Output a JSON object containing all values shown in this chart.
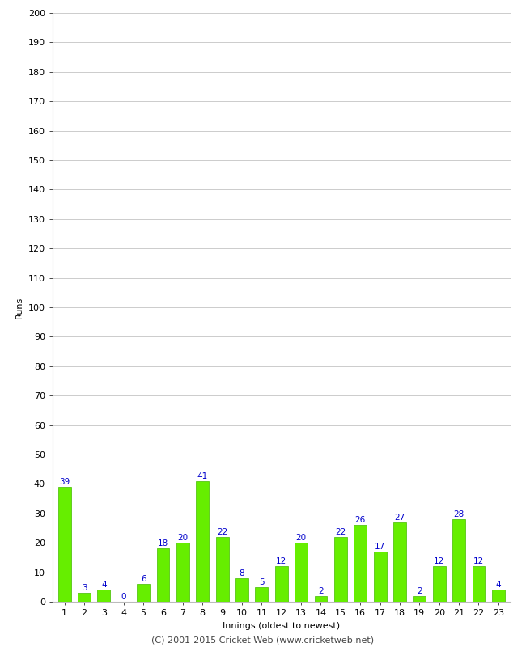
{
  "xlabel": "Innings (oldest to newest)",
  "ylabel": "Runs",
  "innings": [
    1,
    2,
    3,
    4,
    5,
    6,
    7,
    8,
    9,
    10,
    11,
    12,
    13,
    14,
    15,
    16,
    17,
    18,
    19,
    20,
    21,
    22,
    23
  ],
  "values": [
    39,
    3,
    4,
    0,
    6,
    18,
    20,
    41,
    22,
    8,
    5,
    12,
    20,
    2,
    22,
    26,
    17,
    27,
    2,
    12,
    28,
    12,
    4
  ],
  "bar_color": "#66ee00",
  "bar_edge_color": "#44bb00",
  "label_color": "#0000cc",
  "ylim": [
    0,
    200
  ],
  "yticks": [
    0,
    10,
    20,
    30,
    40,
    50,
    60,
    70,
    80,
    90,
    100,
    110,
    120,
    130,
    140,
    150,
    160,
    170,
    180,
    190,
    200
  ],
  "background_color": "#ffffff",
  "grid_color": "#cccccc",
  "footer": "(C) 2001-2015 Cricket Web (www.cricketweb.net)",
  "label_fontsize": 7.5,
  "tick_fontsize": 8,
  "xlabel_fontsize": 8,
  "ylabel_fontsize": 8,
  "footer_fontsize": 8
}
